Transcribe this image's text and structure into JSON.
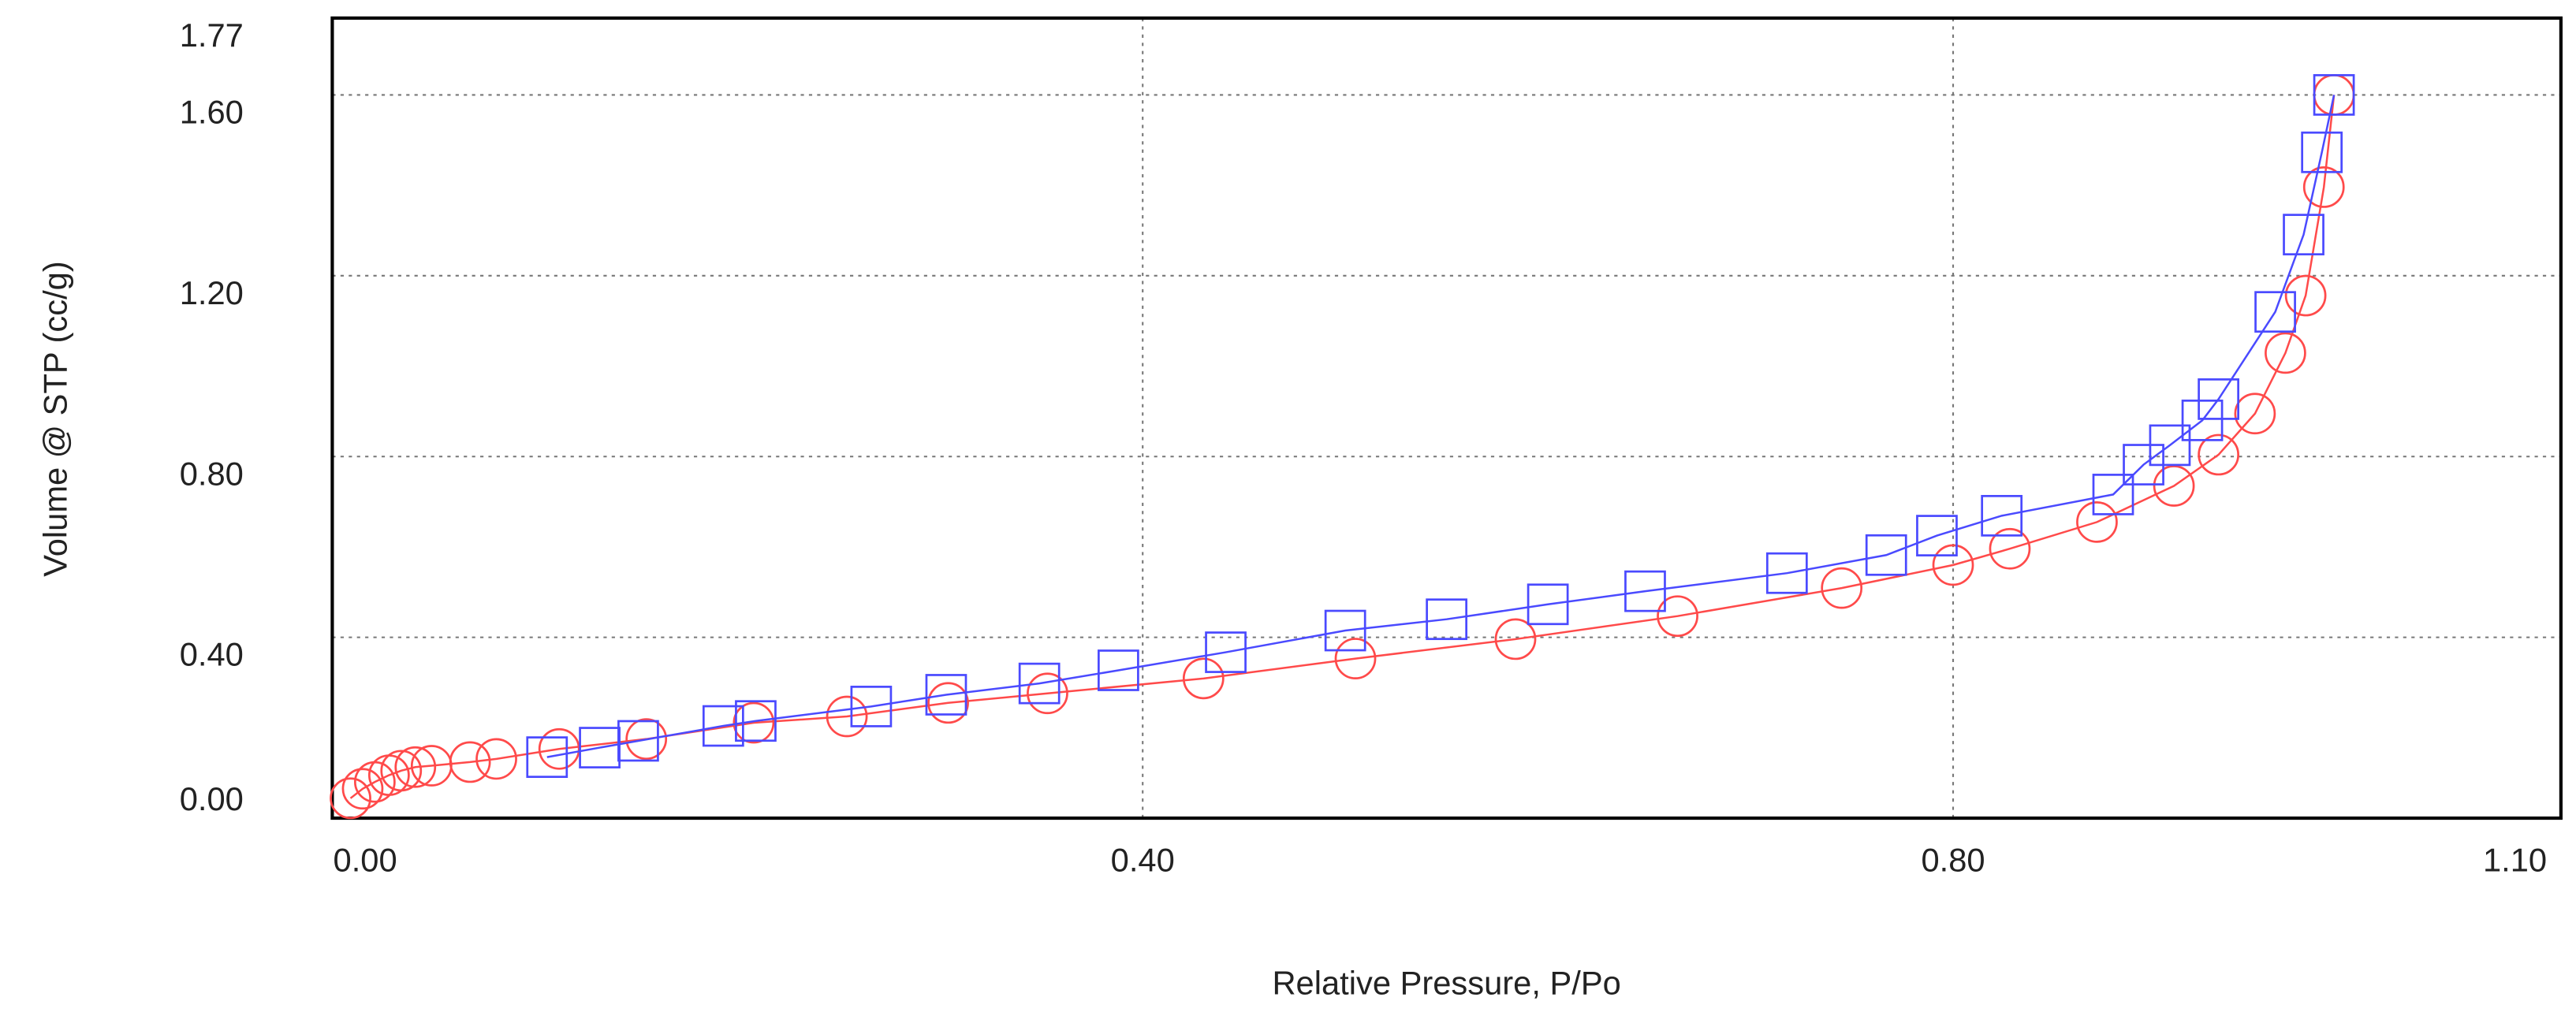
{
  "chart_data": {
    "type": "line",
    "x_label": "Relative Pressure, P/Po",
    "y_label": "Volume @ STP (cc/g)",
    "xlim": [
      0,
      1.1
    ],
    "ylim": [
      0,
      1.77
    ],
    "xticks": [
      {
        "value": 0,
        "label": "0.00"
      },
      {
        "value": 0.4,
        "label": "0.40"
      },
      {
        "value": 0.8,
        "label": "0.80"
      },
      {
        "value": 1.1,
        "label": "1.10"
      }
    ],
    "yticks": [
      {
        "value": 0,
        "label": "0.00"
      },
      {
        "value": 0.4,
        "label": "0.40"
      },
      {
        "value": 0.8,
        "label": "0.80"
      },
      {
        "value": 1.2,
        "label": "1.20"
      },
      {
        "value": 1.6,
        "label": "1.60"
      },
      1.77
    ],
    "grid": true,
    "series": [
      {
        "color": "#ff4a4a",
        "marker": "circle",
        "x": [
          0.009,
          0.015,
          0.021,
          0.028,
          0.034,
          0.041,
          0.049,
          0.068,
          0.081,
          0.112,
          0.155,
          0.208,
          0.254,
          0.304,
          0.353,
          0.43,
          0.505,
          0.584,
          0.664,
          0.745,
          0.8,
          0.828,
          0.871,
          0.909,
          0.931,
          0.949,
          0.964,
          0.974,
          0.983,
          0.988
        ],
        "values": [
          0.044,
          0.065,
          0.08,
          0.095,
          0.105,
          0.113,
          0.116,
          0.124,
          0.131,
          0.153,
          0.175,
          0.211,
          0.225,
          0.255,
          0.276,
          0.309,
          0.353,
          0.396,
          0.447,
          0.509,
          0.56,
          0.596,
          0.655,
          0.735,
          0.804,
          0.895,
          1.029,
          1.156,
          1.396,
          1.6
        ]
      },
      {
        "color": "#4a4aff",
        "marker": "square",
        "x": [
          0.106,
          0.132,
          0.151,
          0.193,
          0.209,
          0.266,
          0.303,
          0.349,
          0.388,
          0.441,
          0.5,
          0.55,
          0.6,
          0.648,
          0.718,
          0.767,
          0.792,
          0.824,
          0.879,
          0.894,
          0.907,
          0.923,
          0.931,
          0.959,
          0.973,
          0.982,
          0.988
        ],
        "values": [
          0.135,
          0.156,
          0.171,
          0.204,
          0.215,
          0.247,
          0.273,
          0.298,
          0.327,
          0.367,
          0.415,
          0.44,
          0.473,
          0.502,
          0.542,
          0.582,
          0.625,
          0.669,
          0.716,
          0.782,
          0.825,
          0.88,
          0.927,
          1.12,
          1.291,
          1.473,
          1.6
        ]
      }
    ]
  }
}
